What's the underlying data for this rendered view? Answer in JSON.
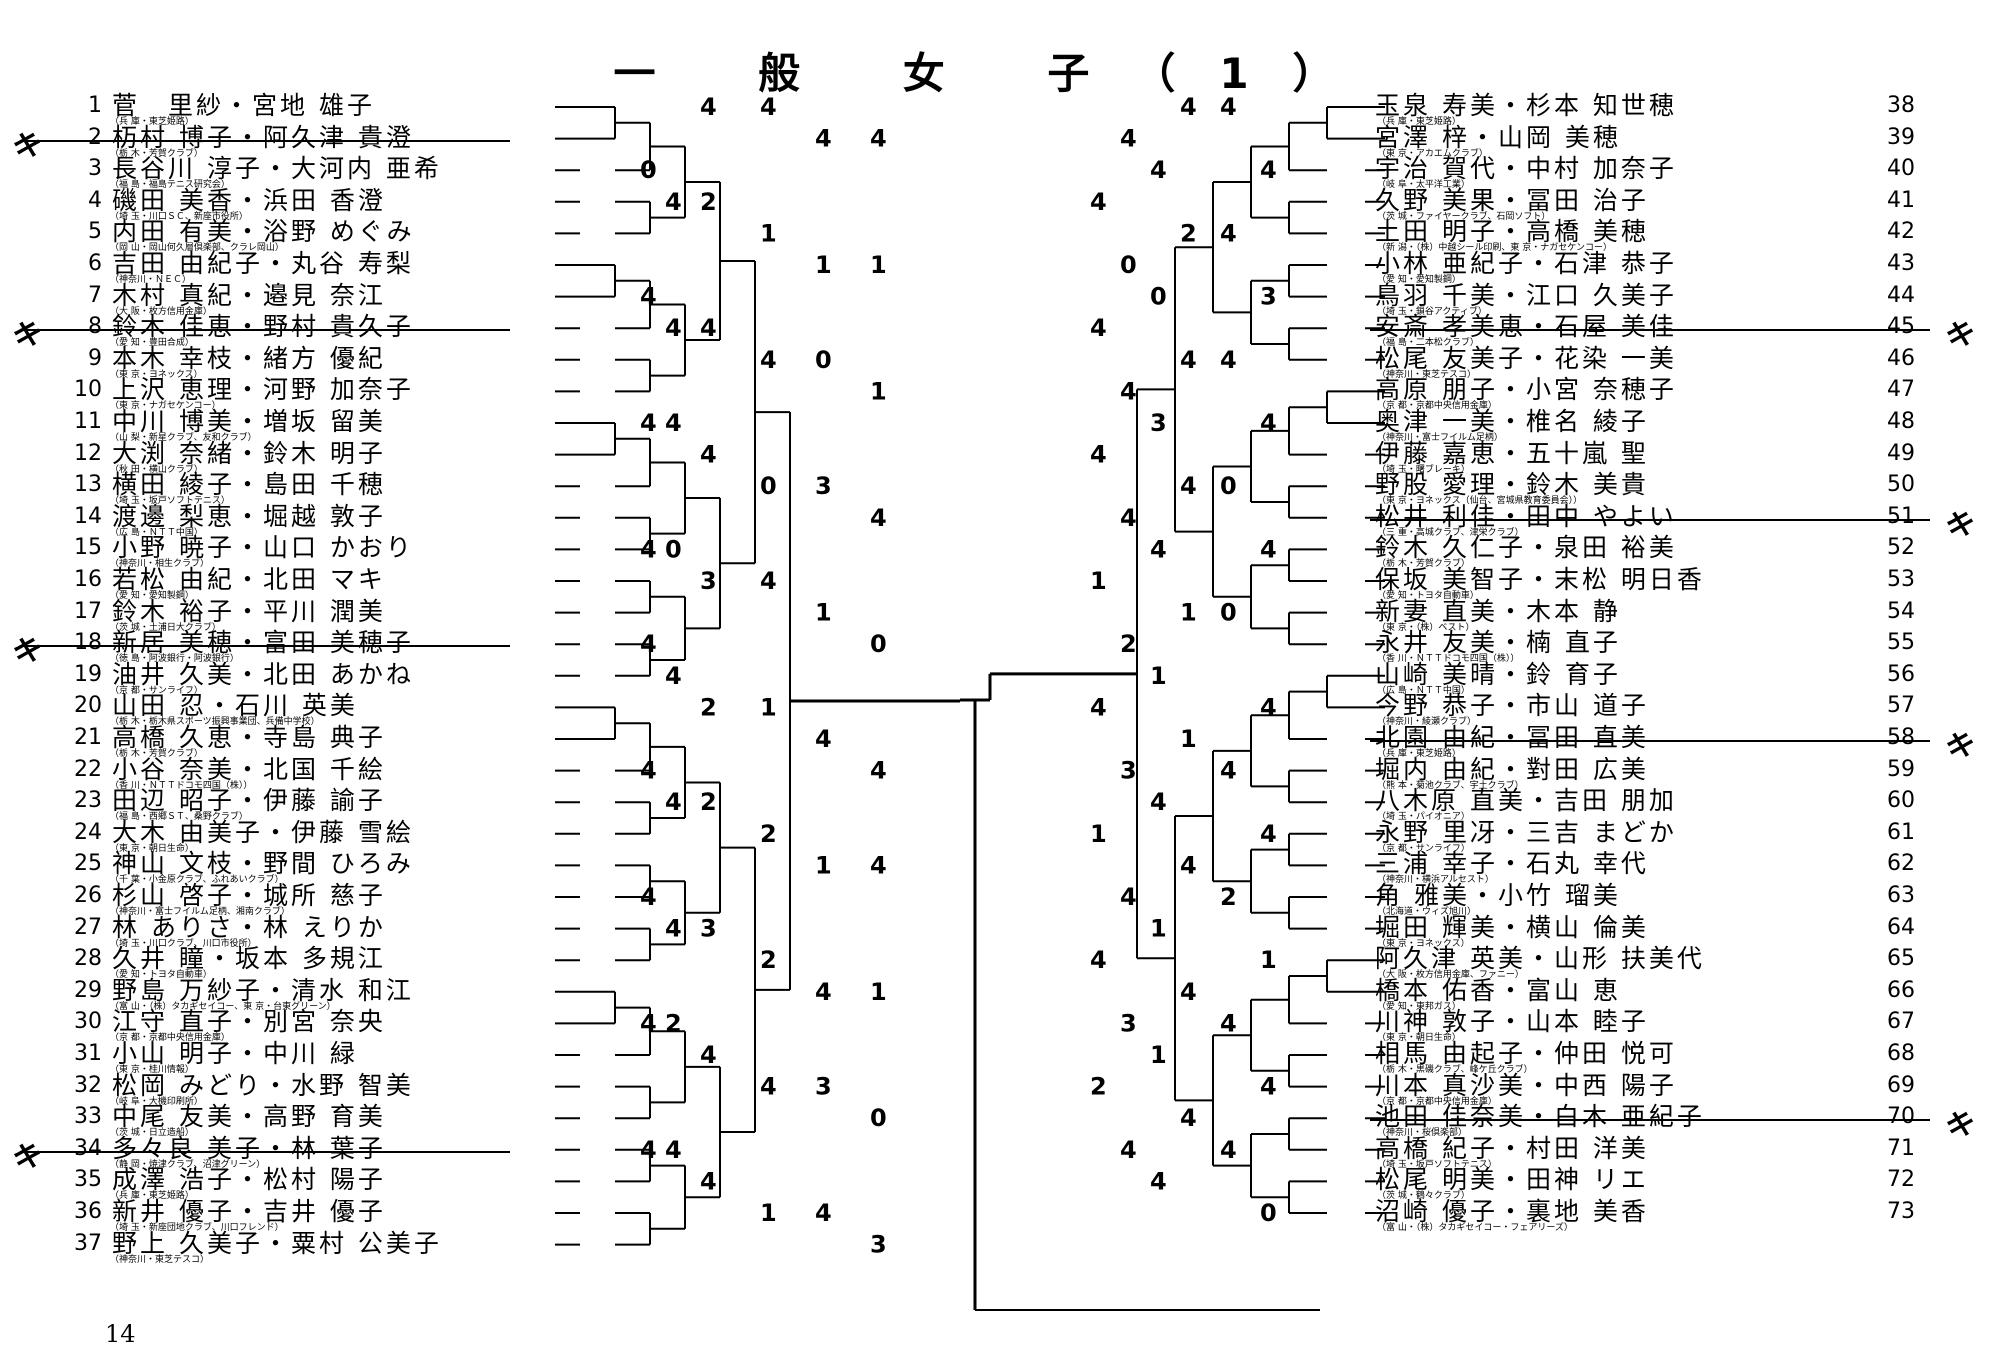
{
  "title": "一 般 女 子（1）",
  "page_number": "14",
  "withdraw_mark": "キ",
  "left_entries": [
    {
      "no": "1",
      "names": "菅　里紗・宮地 雄子",
      "aff": "（兵 庫・東芝姫路）"
    },
    {
      "no": "2",
      "names": "杤村 博子・阿久津 貴澄",
      "aff": "（栃 木・芳賀クラブ）",
      "withdrawn": true
    },
    {
      "no": "3",
      "names": "長谷川 淳子・大河内 亜希",
      "aff": "（福 島・福島テニス研究会）"
    },
    {
      "no": "4",
      "names": "磯田 美香・浜田 香澄",
      "aff": "（埼 玉・川口ＳＣ、新座市役所）"
    },
    {
      "no": "5",
      "names": "内田 有美・浴野 めぐみ",
      "aff": "（岡 山・岡山何久層倶楽部、クラレ岡山）"
    },
    {
      "no": "6",
      "names": "吉田 由紀子・丸谷 寿梨",
      "aff": "（神奈川・ＮＥＣ）"
    },
    {
      "no": "7",
      "names": "木村 真紀・邉見 奈江",
      "aff": "（大 阪・枚方信用金庫）"
    },
    {
      "no": "8",
      "names": "鈴木 佳恵・野村 貴久子",
      "aff": "（愛 知・豊田合成）",
      "withdrawn": true
    },
    {
      "no": "9",
      "names": "本木 幸枝・緒方 優紀",
      "aff": "（東 京・ヨネックス）"
    },
    {
      "no": "10",
      "names": "上沢 恵理・河野 加奈子",
      "aff": "（東 京・ナガセケンコー）"
    },
    {
      "no": "11",
      "names": "中川 博美・増坂 留美",
      "aff": "（山 梨・新星クラブ、友和クラブ）"
    },
    {
      "no": "12",
      "names": "大渕 奈緒・鈴木 明子",
      "aff": "（秋 田・横山クラブ）"
    },
    {
      "no": "13",
      "names": "横田 綾子・島田 千穂",
      "aff": "（埼 玉・坂戸ソフトテニス）"
    },
    {
      "no": "14",
      "names": "渡邊 梨恵・堀越 敦子",
      "aff": "（広 島・ＮＴＴ中国）"
    },
    {
      "no": "15",
      "names": "小野 暁子・山口 かおり",
      "aff": "（神奈川・相生クラブ）"
    },
    {
      "no": "16",
      "names": "若松 由紀・北田 マキ",
      "aff": "（愛 知・愛知製鋼）"
    },
    {
      "no": "17",
      "names": "鈴木 裕子・平川 潤美",
      "aff": "（茨 城・土浦日大クラブ）"
    },
    {
      "no": "18",
      "names": "新居 美穂・富田 美穂子",
      "aff": "（徳 島・阿波銀行・阿波銀行）",
      "withdrawn": true
    },
    {
      "no": "19",
      "names": "油井 久美・北田 あかね",
      "aff": "（京 都・サンライフ）"
    },
    {
      "no": "20",
      "names": "山田 忍・石川 英美",
      "aff": "（栃 木・栃木県スポーツ振興事業団、兵備中学校）"
    },
    {
      "no": "21",
      "names": "高橋 久恵・寺島 典子",
      "aff": "（栃 木・芳賀クラブ）"
    },
    {
      "no": "22",
      "names": "小谷 奈美・北国 千絵",
      "aff": "（香 川・ＮＴＴドコモ四国（株））"
    },
    {
      "no": "23",
      "names": "田辺 昭子・伊藤 諭子",
      "aff": "（福 島・西郷ＳＴ、桑野クラブ）"
    },
    {
      "no": "24",
      "names": "大木 由美子・伊藤 雪絵",
      "aff": "（東 京・朝日生命）"
    },
    {
      "no": "25",
      "names": "神山 文枝・野間 ひろみ",
      "aff": "（千 葉・小金原クラブ、ふれあいクラブ）"
    },
    {
      "no": "26",
      "names": "杉山 啓子・城所 慈子",
      "aff": "（神奈川・富士フイルム足柄、湘南クラブ）"
    },
    {
      "no": "27",
      "names": "林 ありさ・林 えりか",
      "aff": "（埼 玉・川口クラブ、川口市役所）"
    },
    {
      "no": "28",
      "names": "久井 瞳・坂本 多規江",
      "aff": "（愛 知・トヨタ自動車）"
    },
    {
      "no": "29",
      "names": "野島 万紗子・清水 和江",
      "aff": "（富 山・（株）タカギセイコー、東 京・台東グリーン）"
    },
    {
      "no": "30",
      "names": "江守 直子・別宮 奈央",
      "aff": "（京 都・京都中央信用金庫）"
    },
    {
      "no": "31",
      "names": "小山 明子・中川 緑",
      "aff": "（東 京・桂川情報）"
    },
    {
      "no": "32",
      "names": "松岡 みどり・水野 智美",
      "aff": "（岐 阜・大機印刷所）"
    },
    {
      "no": "33",
      "names": "中尾 友美・高野 育美",
      "aff": "（茨 城・日立造船）"
    },
    {
      "no": "34",
      "names": "多々良 美子・林 葉子",
      "aff": "（静 岡・焼津クラブ、沼津グリーン）",
      "withdrawn": true
    },
    {
      "no": "35",
      "names": "成澤 浩子・松村 陽子",
      "aff": "（兵 庫・東芝姫路）"
    },
    {
      "no": "36",
      "names": "新井 優子・吉井 優子",
      "aff": "（埼 玉・新座団地クラブ、川口フレンド）"
    },
    {
      "no": "37",
      "names": "野上 久美子・粟村 公美子",
      "aff": "（神奈川・東芝テスコ）"
    }
  ],
  "right_entries": [
    {
      "no": "38",
      "names": "玉泉 寿美・杉本 知世穂",
      "aff": "（兵 庫・東芝姫路）"
    },
    {
      "no": "39",
      "names": "宮澤 梓・山岡 美穂",
      "aff": "（東 京・アカエムクラブ）"
    },
    {
      "no": "40",
      "names": "宇治 賀代・中村 加奈子",
      "aff": "（岐 阜・太平洋工業）"
    },
    {
      "no": "41",
      "names": "久野 美果・冨田 治子",
      "aff": "（茨 城・ファイヤークラブ、石岡ソフト）"
    },
    {
      "no": "42",
      "names": "土田 明子・高橋 美穂",
      "aff": "（新 潟・（株）中越シール印刷、東 京・ナガセケンコー）"
    },
    {
      "no": "43",
      "names": "小林 亜紀子・石津 恭子",
      "aff": "（愛 知・愛知製鋼）"
    },
    {
      "no": "44",
      "names": "鳥羽 千美・江口 久美子",
      "aff": "（埼 玉・鎖谷アクティブ）"
    },
    {
      "no": "45",
      "names": "安斎 孝美恵・石屋 美佳",
      "aff": "（福 島・二本松クラブ）",
      "withdrawn": true
    },
    {
      "no": "46",
      "names": "松尾 友美子・花染 一美",
      "aff": "（神奈川・東芝テスコ）"
    },
    {
      "no": "47",
      "names": "高原 朋子・小宮 奈穂子",
      "aff": "（京 都・京都中央信用金庫）"
    },
    {
      "no": "48",
      "names": "奥津 一美・椎名 綾子",
      "aff": "（神奈川・富士フイルム足柄）"
    },
    {
      "no": "49",
      "names": "伊藤 嘉恵・五十嵐 聖",
      "aff": "（埼 玉・曙ブレーキ）"
    },
    {
      "no": "50",
      "names": "野股 愛理・鈴木 美貴",
      "aff": "（東 京・ヨネックス（仙台、宮城県教育委員会））"
    },
    {
      "no": "51",
      "names": "松井 利佳・田中 やよい",
      "aff": "（三 重・高城クラブ、津栄クラブ）",
      "withdrawn": true
    },
    {
      "no": "52",
      "names": "鈴木 久仁子・泉田 裕美",
      "aff": "（栃 木・芳賀クラブ）"
    },
    {
      "no": "53",
      "names": "保坂 美智子・末松 明日香",
      "aff": "（愛 知・トヨタ自動車）"
    },
    {
      "no": "54",
      "names": "新妻 直美・木本 静",
      "aff": "（東 京・（株）ベスト）"
    },
    {
      "no": "55",
      "names": "永井 友美・楠 直子",
      "aff": "（香 川・ＮＴＴドコモ四国（株））"
    },
    {
      "no": "56",
      "names": "山崎 美晴・鈴 育子",
      "aff": "（広 島・ＮＴＴ中国）"
    },
    {
      "no": "57",
      "names": "今野 恭子・市山 道子",
      "aff": "（神奈川・綾瀬クラブ）"
    },
    {
      "no": "58",
      "names": "北園 由紀・冨田 直美",
      "aff": "（兵 庫・東芝姫路）",
      "withdrawn": true
    },
    {
      "no": "59",
      "names": "堀内 由紀・對田 広美",
      "aff": "（熊 本・菊池クラブ、宇土クラブ）"
    },
    {
      "no": "60",
      "names": "八木原 直美・吉田 朋加",
      "aff": "（埼 玉・パイオニア）"
    },
    {
      "no": "61",
      "names": "永野 里冴・三吉 まどか",
      "aff": "（京 都・サンライフ）"
    },
    {
      "no": "62",
      "names": "三浦 幸子・石丸 幸代",
      "aff": "（神奈川・横浜アルセスト）"
    },
    {
      "no": "63",
      "names": "角 雅美・小竹 瑠美",
      "aff": "（北海道・ウィズ旭川）"
    },
    {
      "no": "64",
      "names": "堀田 輝美・横山 倫美",
      "aff": "（東 京・ヨネックス）"
    },
    {
      "no": "65",
      "names": "阿久津 英美・山形 扶美代",
      "aff": "（大 阪・枚方信用金庫、ファニー）"
    },
    {
      "no": "66",
      "names": "橋本 佑香・富山 恵",
      "aff": "（愛 知・東邦ガス）"
    },
    {
      "no": "67",
      "names": "川神 敦子・山本 睦子",
      "aff": "（東 京・朝日生命）"
    },
    {
      "no": "68",
      "names": "相馬 由起子・仲田 悦可",
      "aff": "（栃 木・黒磯クラブ、峰ケ丘クラブ）"
    },
    {
      "no": "69",
      "names": "川本 真沙美・中西 陽子",
      "aff": "（京 都・京都中央信用金庫）"
    },
    {
      "no": "70",
      "names": "池田 佳奈美・白木 亜紀子",
      "aff": "（神奈川・桜倶楽部）",
      "withdrawn": true
    },
    {
      "no": "71",
      "names": "高橋 紀子・村田 洋美",
      "aff": "（埼 玉・坂戸ソフトテニス）"
    },
    {
      "no": "72",
      "names": "松尾 明美・田神 リエ",
      "aff": "（茨 城・鶴々クラブ）"
    },
    {
      "no": "73",
      "names": "沼崎 優子・裏地 美香",
      "aff": "（富 山・（株）タカギセイコー・フェアリーズ）"
    }
  ],
  "left_scores": [
    "4",
    "4",
    "4",
    "4",
    "0",
    "4",
    "2",
    "1",
    "1",
    "1",
    "4",
    "4",
    "4",
    "4",
    "0",
    "1",
    "4",
    "4",
    "4",
    "0",
    "3",
    "4",
    "4",
    "0",
    "3",
    "4",
    "1",
    "0",
    "4",
    "4",
    "2",
    "1",
    "4",
    "4",
    "4",
    "4",
    "2",
    "2",
    "1",
    "4",
    "4",
    "4",
    "3",
    "2",
    "4",
    "1",
    "4",
    "2",
    "4",
    "4",
    "3",
    "0",
    "4",
    "4",
    "4",
    "1",
    "4",
    "3"
  ],
  "right_scores": [
    "4",
    "4",
    "4",
    "4",
    "4",
    "4",
    "2",
    "4",
    "0",
    "0",
    "3",
    "4",
    "4",
    "4",
    "4",
    "3",
    "4",
    "4",
    "4",
    "0",
    "4",
    "4",
    "4",
    "1",
    "1",
    "0",
    "2",
    "1",
    "4",
    "4",
    "1",
    "4",
    "3",
    "4",
    "4",
    "1",
    "4",
    "2",
    "4",
    "1",
    "1",
    "4",
    "4",
    "4",
    "3",
    "1",
    "4",
    "2",
    "4",
    "4",
    "4",
    "4",
    "0"
  ]
}
